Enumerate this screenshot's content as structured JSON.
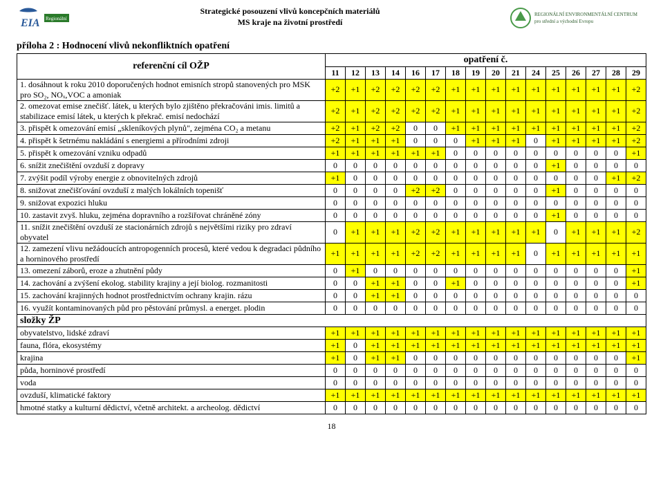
{
  "header": {
    "line1": "Strategické posouzení vlivů koncepčních materiálů",
    "line2": "MS kraje na životní prostředí"
  },
  "attachment_title": "příloha 2 : Hodnocení vlivů nekonfliktních opatření",
  "page_number": "18",
  "colors": {
    "background": "#ffffff",
    "border": "#000000",
    "highlight_positive": "#ffff00",
    "text": "#000000"
  },
  "table": {
    "header_left": "referenční cíl OŽP",
    "header_right": "opatření č.",
    "columns": [
      "11",
      "12",
      "13",
      "14",
      "16",
      "17",
      "18",
      "19",
      "20",
      "21",
      "24",
      "25",
      "26",
      "27",
      "28",
      "29"
    ],
    "rows": [
      {
        "label": "1. dosáhnout k roku 2010 doporučených hodnot emisních stropů stanovených pro MSK pro SO₂, NOₓ,VOC a amoniak",
        "vals": [
          "+2",
          "+1",
          "+2",
          "+2",
          "+2",
          "+2",
          "+1",
          "+1",
          "+1",
          "+1",
          "+1",
          "+1",
          "+1",
          "+1",
          "+1",
          "+2"
        ]
      },
      {
        "label": "2. omezovat emise znečišť. látek, u kterých bylo zjištěno překračováni imis. limitů a stabilizace emisí látek, u kterých k překrač. emisí nedochází",
        "vals": [
          "+2",
          "+1",
          "+2",
          "+2",
          "+2",
          "+2",
          "+1",
          "+1",
          "+1",
          "+1",
          "+1",
          "+1",
          "+1",
          "+1",
          "+1",
          "+2"
        ]
      },
      {
        "label": "3. přispět k omezování emisí „skleníkových plynů\", zejména CO₂ a metanu",
        "vals": [
          "+2",
          "+1",
          "+2",
          "+2",
          "0",
          "0",
          "+1",
          "+1",
          "+1",
          "+1",
          "+1",
          "+1",
          "+1",
          "+1",
          "+1",
          "+2"
        ]
      },
      {
        "label": "4. přispět k šetrnému nakládání s energiemi a přírodními zdroji",
        "vals": [
          "+2",
          "+1",
          "+1",
          "+1",
          "0",
          "0",
          "0",
          "+1",
          "+1",
          "+1",
          "0",
          "+1",
          "+1",
          "+1",
          "+1",
          "+2"
        ]
      },
      {
        "label": "5. přispět k omezování vzniku odpadů",
        "vals": [
          "+1",
          "+1",
          "+1",
          "+1",
          "+1",
          "+1",
          "0",
          "0",
          "0",
          "0",
          "0",
          "0",
          "0",
          "0",
          "0",
          "+1"
        ]
      },
      {
        "label": "6. snížit znečištění ovzduší z dopravy",
        "vals": [
          "0",
          "0",
          "0",
          "0",
          "0",
          "0",
          "0",
          "0",
          "0",
          "0",
          "0",
          "+1",
          "0",
          "0",
          "0",
          "0"
        ]
      },
      {
        "label": "7. zvýšit podíl výroby energie z obnovitelných zdrojů",
        "vals": [
          "+1",
          "0",
          "0",
          "0",
          "0",
          "0",
          "0",
          "0",
          "0",
          "0",
          "0",
          "0",
          "0",
          "0",
          "+1",
          "+2"
        ]
      },
      {
        "label": "8. snižovat znečišťování ovzduší z  malých lokálních topenišť",
        "vals": [
          "0",
          "0",
          "0",
          "0",
          "+2",
          "+2",
          "0",
          "0",
          "0",
          "0",
          "0",
          "+1",
          "0",
          "0",
          "0",
          "0"
        ]
      },
      {
        "label": "9. snižovat expozici hluku",
        "vals": [
          "0",
          "0",
          "0",
          "0",
          "0",
          "0",
          "0",
          "0",
          "0",
          "0",
          "0",
          "0",
          "0",
          "0",
          "0",
          "0"
        ]
      },
      {
        "label": "10. zastavit zvyš. hluku, zejména dopravního a rozšiřovat chráněné zóny",
        "vals": [
          "0",
          "0",
          "0",
          "0",
          "0",
          "0",
          "0",
          "0",
          "0",
          "0",
          "0",
          "+1",
          "0",
          "0",
          "0",
          "0"
        ]
      },
      {
        "label": "11. snížit znečištění ovzduší ze stacionárních zdrojů s největšími riziky pro zdraví obyvatel",
        "vals": [
          "0",
          "+1",
          "+1",
          "+1",
          "+2",
          "+2",
          "+1",
          "+1",
          "+1",
          "+1",
          "+1",
          "0",
          "+1",
          "+1",
          "+1",
          "+2"
        ]
      },
      {
        "label": "12. zamezení vlivu nežádoucích antropogenních procesů, které vedou k degradaci půdního a horninového prostředí",
        "vals": [
          "+1",
          "+1",
          "+1",
          "+1",
          "+2",
          "+2",
          "+1",
          "+1",
          "+1",
          "+1",
          "0",
          "+1",
          "+1",
          "+1",
          "+1",
          "+1"
        ]
      },
      {
        "label": "13. omezení záborů, eroze a zhutnění půdy",
        "vals": [
          "0",
          "+1",
          "0",
          "0",
          "0",
          "0",
          "0",
          "0",
          "0",
          "0",
          "0",
          "0",
          "0",
          "0",
          "0",
          "+1"
        ]
      },
      {
        "label": "14. zachování a zvýšení ekolog. stability krajiny a její biolog. rozmanitosti",
        "vals": [
          "0",
          "0",
          "+1",
          "+1",
          "0",
          "0",
          "+1",
          "0",
          "0",
          "0",
          "0",
          "0",
          "0",
          "0",
          "0",
          "+1"
        ]
      },
      {
        "label": "15. zachování krajinných hodnot prostřednictvím ochrany krajin. rázu",
        "vals": [
          "0",
          "0",
          "+1",
          "+1",
          "0",
          "0",
          "0",
          "0",
          "0",
          "0",
          "0",
          "0",
          "0",
          "0",
          "0",
          "0"
        ]
      },
      {
        "label": "16. využít kontaminovaných půd pro pěstování průmysl. a energet. plodin",
        "vals": [
          "0",
          "0",
          "0",
          "0",
          "0",
          "0",
          "0",
          "0",
          "0",
          "0",
          "0",
          "0",
          "0",
          "0",
          "0",
          "0"
        ]
      }
    ],
    "section_label": "složky ŽP",
    "section_rows": [
      {
        "label": "obyvatelstvo, lidské zdraví",
        "vals": [
          "+1",
          "+1",
          "+1",
          "+1",
          "+1",
          "+1",
          "+1",
          "+1",
          "+1",
          "+1",
          "+1",
          "+1",
          "+1",
          "+1",
          "+1",
          "+1"
        ]
      },
      {
        "label": "fauna, flóra, ekosystémy",
        "vals": [
          "+1",
          "0",
          "+1",
          "+1",
          "+1",
          "+1",
          "+1",
          "+1",
          "+1",
          "+1",
          "+1",
          "+1",
          "+1",
          "+1",
          "+1",
          "+1"
        ]
      },
      {
        "label": "krajina",
        "vals": [
          "+1",
          "0",
          "+1",
          "+1",
          "0",
          "0",
          "0",
          "0",
          "0",
          "0",
          "0",
          "0",
          "0",
          "0",
          "0",
          "+1"
        ]
      },
      {
        "label": "půda, horninové prostředí",
        "vals": [
          "0",
          "0",
          "0",
          "0",
          "0",
          "0",
          "0",
          "0",
          "0",
          "0",
          "0",
          "0",
          "0",
          "0",
          "0",
          "0"
        ]
      },
      {
        "label": "voda",
        "vals": [
          "0",
          "0",
          "0",
          "0",
          "0",
          "0",
          "0",
          "0",
          "0",
          "0",
          "0",
          "0",
          "0",
          "0",
          "0",
          "0"
        ]
      },
      {
        "label": "ovzduší, klimatické faktory",
        "vals": [
          "+1",
          "+1",
          "+1",
          "+1",
          "+1",
          "+1",
          "+1",
          "+1",
          "+1",
          "+1",
          "+1",
          "+1",
          "+1",
          "+1",
          "+1",
          "+1"
        ]
      },
      {
        "label": "hmotné statky a kulturní dědictví, včetně architekt. a archeolog. dědictví",
        "vals": [
          "0",
          "0",
          "0",
          "0",
          "0",
          "0",
          "0",
          "0",
          "0",
          "0",
          "0",
          "0",
          "0",
          "0",
          "0",
          "0"
        ]
      }
    ]
  }
}
